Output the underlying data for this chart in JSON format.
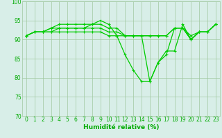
{
  "series": [
    [
      91,
      92,
      92,
      93,
      93,
      93,
      93,
      93,
      94,
      95,
      94,
      91,
      86,
      82,
      79,
      79,
      84,
      87,
      87,
      94,
      90,
      92,
      92,
      94
    ],
    [
      91,
      92,
      92,
      93,
      94,
      94,
      94,
      94,
      94,
      94,
      93,
      93,
      91,
      91,
      91,
      79,
      84,
      86,
      93,
      93,
      90,
      92,
      92,
      94
    ],
    [
      91,
      92,
      92,
      92,
      93,
      93,
      93,
      93,
      93,
      93,
      92,
      92,
      91,
      91,
      91,
      91,
      91,
      91,
      93,
      93,
      91,
      92,
      92,
      94
    ],
    [
      91,
      92,
      92,
      92,
      92,
      92,
      92,
      92,
      92,
      92,
      91,
      91,
      91,
      91,
      91,
      91,
      91,
      91,
      93,
      93,
      90,
      92,
      92,
      94
    ]
  ],
  "line_color": "#00cc00",
  "marker": "+",
  "markersize": 3,
  "linewidth": 0.9,
  "markeredgewidth": 0.8,
  "xlabel": "Humidité relative (%)",
  "xlim": [
    -0.5,
    23.5
  ],
  "ylim": [
    70,
    100
  ],
  "yticks": [
    70,
    75,
    80,
    85,
    90,
    95,
    100
  ],
  "xticks": [
    0,
    1,
    2,
    3,
    4,
    5,
    6,
    7,
    8,
    9,
    10,
    11,
    12,
    13,
    14,
    15,
    16,
    17,
    18,
    19,
    20,
    21,
    22,
    23
  ],
  "bg_color": "#d8eee8",
  "grid_color": "#a0c8a0",
  "tick_color": "#00aa00",
  "label_color": "#00aa00",
  "tick_fontsize": 5.5,
  "xlabel_fontsize": 6.5
}
